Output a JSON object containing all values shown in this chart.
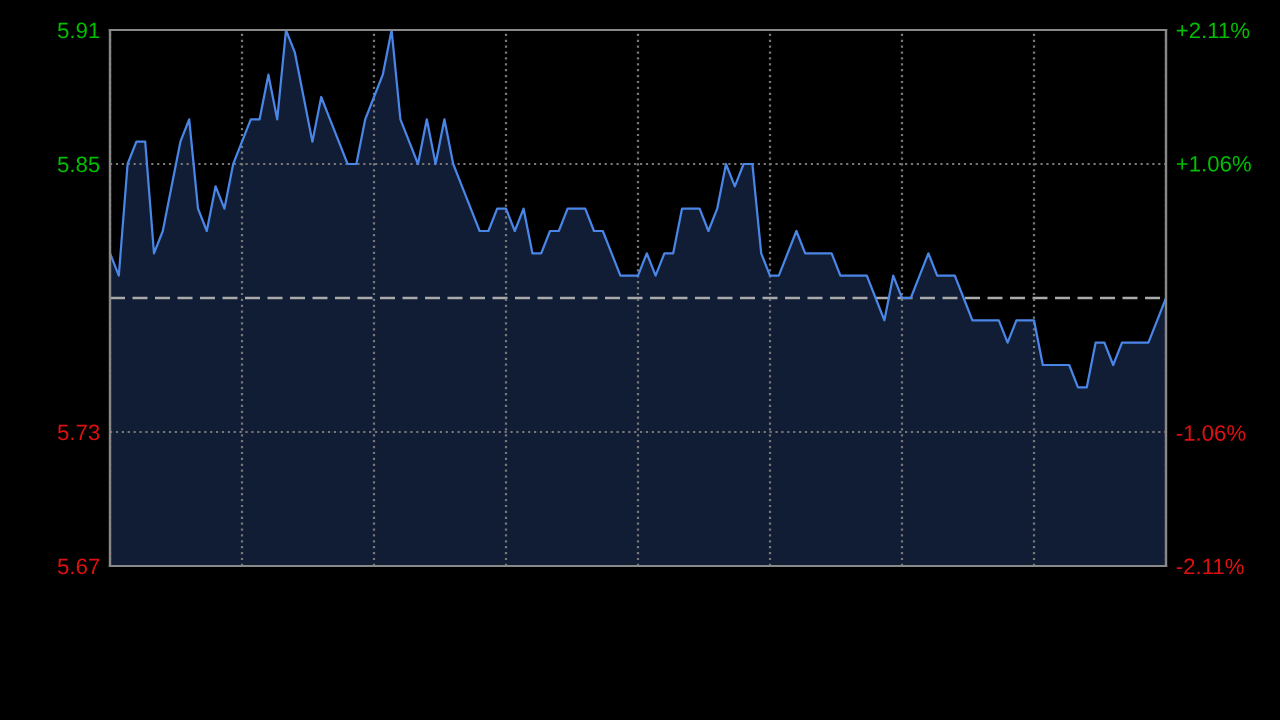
{
  "chart_data": {
    "type": "area",
    "categories": [
      null,
      null,
      null,
      null,
      null,
      null,
      null,
      null,
      null,
      null,
      null,
      null,
      null,
      null,
      null,
      null,
      null,
      null,
      null,
      null,
      null,
      null,
      null,
      null,
      null,
      null,
      null,
      null,
      null,
      null,
      null,
      null,
      null,
      null,
      null,
      null,
      null,
      null,
      null,
      null,
      null,
      null,
      null,
      null,
      null,
      null,
      null,
      null,
      null,
      null,
      null,
      null,
      null,
      null,
      null,
      null,
      null,
      null,
      null,
      null,
      null,
      null,
      null,
      null,
      null,
      null,
      null,
      null,
      null,
      null,
      null,
      null,
      null,
      null,
      null,
      null,
      null,
      null,
      null,
      null,
      null,
      null,
      null,
      null,
      null,
      null,
      null,
      null,
      null,
      null,
      null,
      null,
      null,
      null,
      null,
      null,
      null,
      null,
      null,
      null,
      null,
      null,
      null,
      null,
      null,
      null,
      null,
      null,
      null,
      null,
      null,
      null,
      null,
      null,
      null,
      null,
      null,
      null,
      null,
      null,
      null
    ],
    "series": [
      {
        "color": "#4a86e8",
        "values": [
          5.81,
          5.8,
          5.85,
          5.86,
          5.86,
          5.81,
          5.82,
          5.84,
          5.86,
          5.87,
          5.83,
          5.82,
          5.84,
          5.83,
          5.85,
          5.86,
          5.87,
          5.87,
          5.89,
          5.87,
          5.91,
          5.9,
          5.88,
          5.86,
          5.88,
          5.87,
          5.86,
          5.85,
          5.85,
          5.87,
          5.88,
          5.89,
          5.91,
          5.87,
          5.86,
          5.85,
          5.87,
          5.85,
          5.87,
          5.85,
          5.84,
          5.83,
          5.82,
          5.82,
          5.83,
          5.83,
          5.82,
          5.83,
          5.81,
          5.81,
          5.82,
          5.82,
          5.83,
          5.83,
          5.83,
          5.82,
          5.82,
          5.81,
          5.8,
          5.8,
          5.8,
          5.81,
          5.8,
          5.81,
          5.81,
          5.83,
          5.83,
          5.83,
          5.82,
          5.83,
          5.85,
          5.84,
          5.85,
          5.85,
          5.81,
          5.8,
          5.8,
          5.81,
          5.82,
          5.81,
          5.81,
          5.81,
          5.81,
          5.8,
          5.8,
          5.8,
          5.8,
          5.79,
          5.78,
          5.8,
          5.79,
          5.79,
          5.8,
          5.81,
          5.8,
          5.8,
          5.8,
          5.79,
          5.78,
          5.78,
          5.78,
          5.78,
          5.77,
          5.78,
          5.78,
          5.78,
          5.76,
          5.76,
          5.76,
          5.76,
          5.75,
          5.75,
          5.77,
          5.77,
          5.76,
          5.77,
          5.77,
          5.77,
          5.77,
          5.78,
          5.79
        ]
      }
    ],
    "ylim": [
      5.67,
      5.91
    ],
    "yticks": [
      5.67,
      5.73,
      5.85,
      5.91
    ],
    "y2lim": [
      -2.11,
      2.11
    ],
    "y2ticks": [
      {
        "value": -2.11,
        "label": "-2.11%"
      },
      {
        "value": -1.06,
        "label": "-1.06%"
      },
      {
        "value": 1.06,
        "label": "+1.06%"
      },
      {
        "value": 2.11,
        "label": "+2.11%"
      }
    ],
    "ref_lines": [
      {
        "axis": "y",
        "value": 5.79,
        "color": "#aaaaaa",
        "line_style": "dashed"
      }
    ],
    "grid": true,
    "tick_labels": "y"
  }
}
